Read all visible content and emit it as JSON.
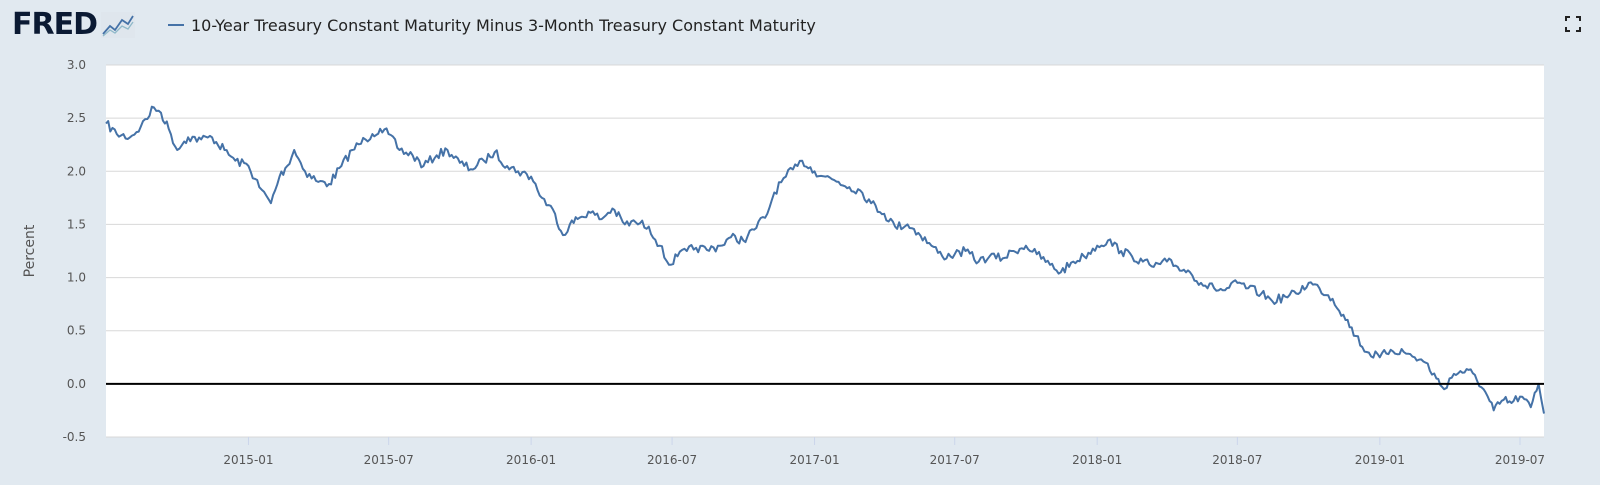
{
  "header": {
    "logo_text": "FRED",
    "legend_label": "10-Year Treasury Constant Maturity Minus 3-Month Treasury Constant Maturity",
    "fullscreen_icon": "fullscreen-icon"
  },
  "colors": {
    "background": "#e1e9f0",
    "plot_background": "#ffffff",
    "series": "#4572a7",
    "zero_line": "#000000",
    "grid": "#d8d8d8"
  },
  "chart_data": {
    "type": "line",
    "title": "",
    "xlabel": "",
    "ylabel": "Percent",
    "ylim": [
      -0.5,
      3.0
    ],
    "yticks": [
      -0.5,
      0.0,
      0.5,
      1.0,
      1.5,
      2.0,
      2.5,
      3.0
    ],
    "ytick_labels": [
      "-0.5",
      "0.0",
      "0.5",
      "1.0",
      "1.5",
      "2.0",
      "2.5",
      "3.0"
    ],
    "xlim": [
      "2014-07-01",
      "2019-08-01"
    ],
    "xticks": [
      "2015-01",
      "2015-07",
      "2016-01",
      "2016-07",
      "2017-01",
      "2017-07",
      "2018-01",
      "2018-07",
      "2019-01",
      "2019-07"
    ],
    "grid": true,
    "legend": "top-left",
    "series": [
      {
        "name": "10-Year Treasury Constant Maturity Minus 3-Month Treasury Constant Maturity",
        "x": [
          "2014-07-01",
          "2014-07-15",
          "2014-08-01",
          "2014-08-15",
          "2014-09-01",
          "2014-09-10",
          "2014-09-20",
          "2014-10-01",
          "2014-10-10",
          "2014-10-15",
          "2014-11-01",
          "2014-11-15",
          "2014-12-01",
          "2014-12-15",
          "2015-01-01",
          "2015-01-15",
          "2015-01-30",
          "2015-02-10",
          "2015-02-20",
          "2015-03-01",
          "2015-03-15",
          "2015-04-01",
          "2015-04-15",
          "2015-05-01",
          "2015-05-15",
          "2015-06-01",
          "2015-06-10",
          "2015-06-20",
          "2015-07-01",
          "2015-07-15",
          "2015-08-01",
          "2015-08-15",
          "2015-09-01",
          "2015-09-15",
          "2015-10-01",
          "2015-10-15",
          "2015-11-01",
          "2015-11-15",
          "2015-12-01",
          "2015-12-15",
          "2016-01-01",
          "2016-01-15",
          "2016-02-01",
          "2016-02-11",
          "2016-02-20",
          "2016-03-01",
          "2016-03-15",
          "2016-04-01",
          "2016-04-15",
          "2016-05-01",
          "2016-05-15",
          "2016-06-01",
          "2016-06-15",
          "2016-06-27",
          "2016-07-08",
          "2016-07-20",
          "2016-08-01",
          "2016-08-15",
          "2016-09-01",
          "2016-09-15",
          "2016-10-01",
          "2016-10-15",
          "2016-11-01",
          "2016-11-10",
          "2016-11-25",
          "2016-12-10",
          "2016-12-16",
          "2017-01-01",
          "2017-01-15",
          "2017-02-01",
          "2017-02-15",
          "2017-03-01",
          "2017-03-15",
          "2017-04-01",
          "2017-04-15",
          "2017-05-01",
          "2017-05-15",
          "2017-06-01",
          "2017-06-15",
          "2017-07-01",
          "2017-07-15",
          "2017-08-01",
          "2017-08-15",
          "2017-09-01",
          "2017-09-15",
          "2017-10-01",
          "2017-10-15",
          "2017-11-01",
          "2017-11-15",
          "2017-12-01",
          "2017-12-15",
          "2018-01-01",
          "2018-01-15",
          "2018-02-01",
          "2018-02-15",
          "2018-03-01",
          "2018-03-15",
          "2018-04-01",
          "2018-04-15",
          "2018-05-01",
          "2018-05-15",
          "2018-06-01",
          "2018-06-15",
          "2018-07-01",
          "2018-07-15",
          "2018-08-01",
          "2018-08-15",
          "2018-09-01",
          "2018-09-15",
          "2018-10-01",
          "2018-10-15",
          "2018-11-01",
          "2018-11-15",
          "2018-12-01",
          "2018-12-15",
          "2019-01-01",
          "2019-01-15",
          "2019-02-01",
          "2019-02-15",
          "2019-03-01",
          "2019-03-15",
          "2019-03-25",
          "2019-04-01",
          "2019-04-15",
          "2019-05-01",
          "2019-05-15",
          "2019-05-28",
          "2019-06-10",
          "2019-06-20",
          "2019-07-01",
          "2019-07-15",
          "2019-07-25",
          "2019-08-01"
        ],
        "y": [
          2.45,
          2.35,
          2.32,
          2.42,
          2.6,
          2.55,
          2.4,
          2.2,
          2.28,
          2.32,
          2.3,
          2.32,
          2.2,
          2.1,
          2.05,
          1.85,
          1.7,
          1.95,
          2.05,
          2.2,
          2.0,
          1.9,
          1.88,
          2.05,
          2.2,
          2.3,
          2.35,
          2.4,
          2.35,
          2.2,
          2.15,
          2.05,
          2.15,
          2.2,
          2.08,
          2.02,
          2.1,
          2.18,
          2.05,
          2.0,
          1.95,
          1.75,
          1.6,
          1.4,
          1.5,
          1.55,
          1.62,
          1.55,
          1.65,
          1.5,
          1.52,
          1.48,
          1.3,
          1.12,
          1.2,
          1.25,
          1.28,
          1.26,
          1.3,
          1.38,
          1.35,
          1.45,
          1.6,
          1.8,
          1.95,
          2.05,
          2.1,
          2.0,
          1.95,
          1.9,
          1.85,
          1.82,
          1.7,
          1.6,
          1.48,
          1.5,
          1.42,
          1.3,
          1.2,
          1.22,
          1.25,
          1.15,
          1.2,
          1.18,
          1.25,
          1.3,
          1.22,
          1.12,
          1.05,
          1.15,
          1.2,
          1.3,
          1.35,
          1.25,
          1.2,
          1.15,
          1.1,
          1.15,
          1.1,
          1.05,
          0.95,
          0.9,
          0.88,
          0.95,
          0.9,
          0.85,
          0.78,
          0.82,
          0.85,
          0.95,
          0.9,
          0.8,
          0.65,
          0.45,
          0.3,
          0.25,
          0.32,
          0.3,
          0.25,
          0.2,
          0.05,
          -0.05,
          0.05,
          0.12,
          0.1,
          -0.05,
          -0.25,
          -0.15,
          -0.18,
          -0.12,
          -0.22,
          0.0,
          -0.28
        ]
      }
    ]
  }
}
